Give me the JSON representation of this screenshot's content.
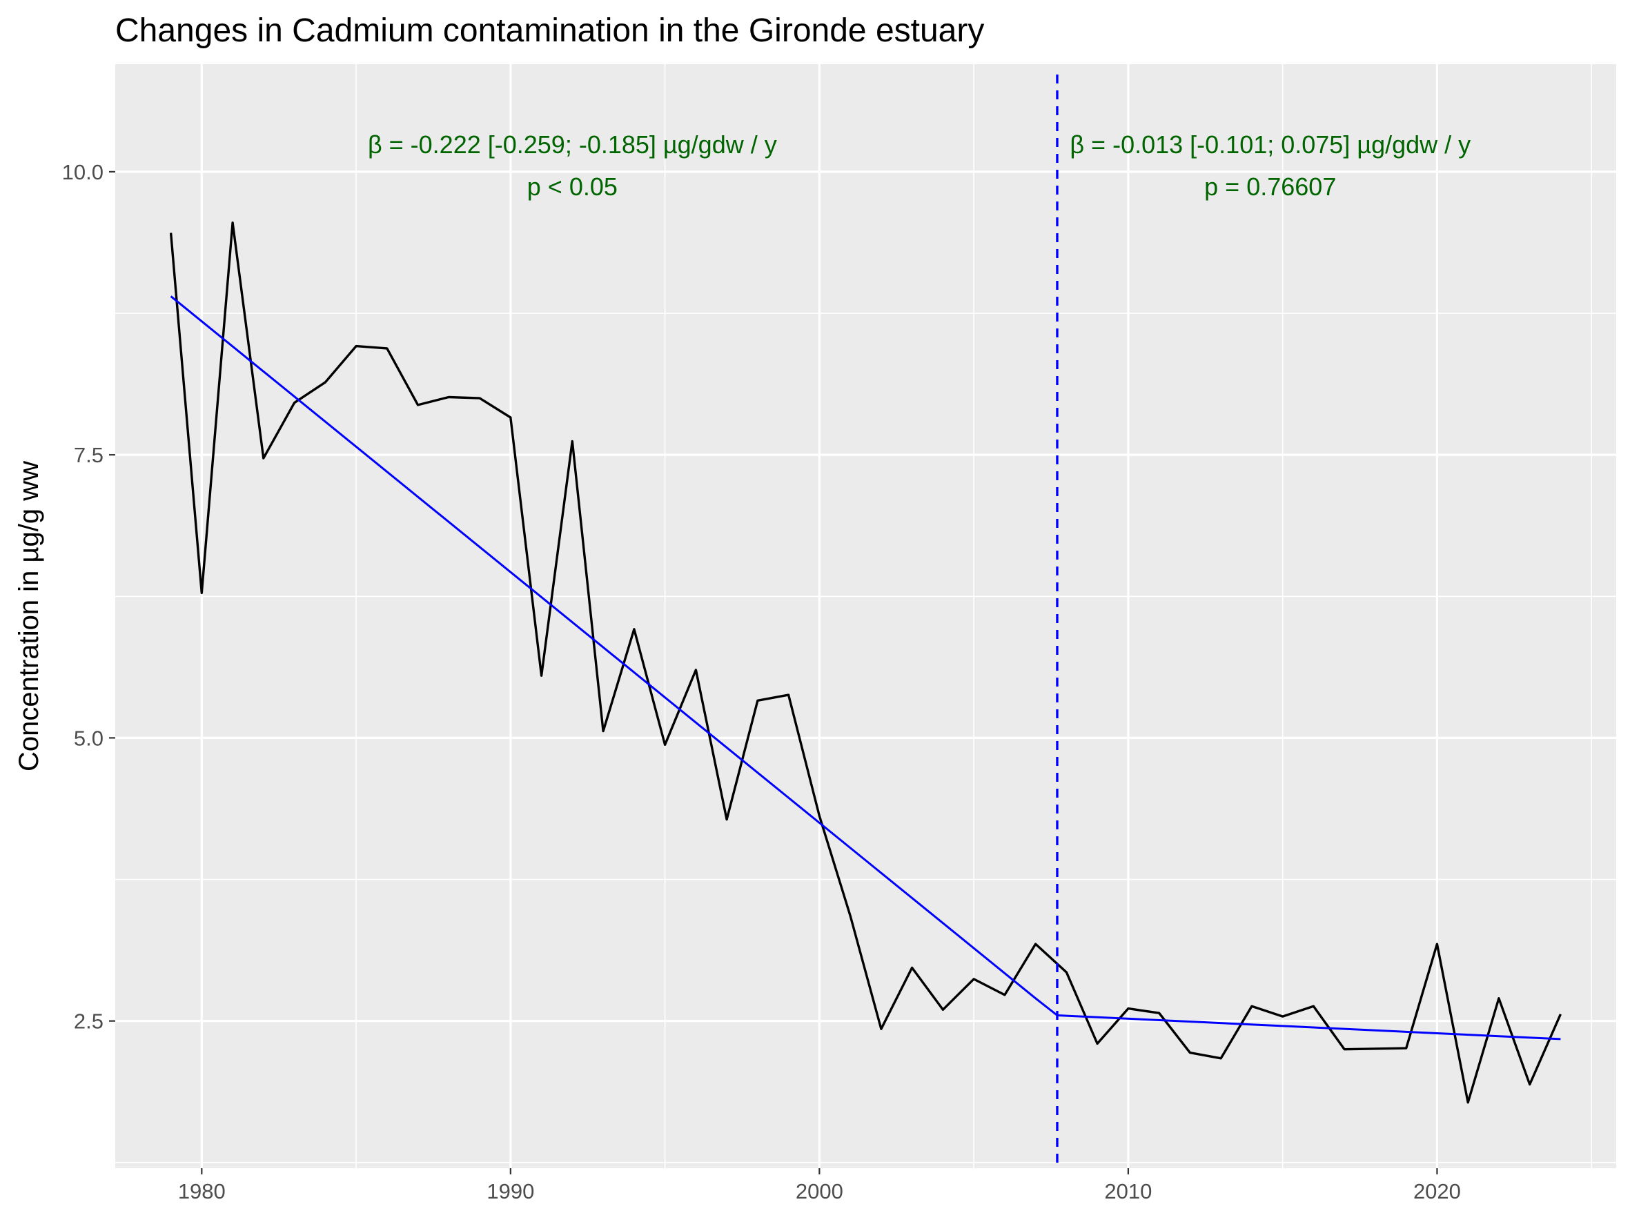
{
  "chart_data": {
    "type": "line",
    "title": "Changes in Cadmium contamination in the Gironde estuary",
    "xlabel": "",
    "ylabel": "Concentration in µg/g ww",
    "xlim": [
      1977.2,
      2025.8
    ],
    "ylim": [
      1.2,
      10.95
    ],
    "x_ticks": [
      1980,
      1990,
      2000,
      2010,
      2020
    ],
    "x_tick_labels": [
      "1980",
      "1990",
      "2000",
      "2010",
      "2020"
    ],
    "y_ticks": [
      2.5,
      5.0,
      7.5,
      10.0
    ],
    "y_tick_labels": [
      "2.5",
      "5.0",
      "7.5",
      "10.0"
    ],
    "grid": true,
    "legend": "none",
    "series": [
      {
        "color": "#000000",
        "x": [
          1979,
          1980,
          1981,
          1982,
          1983,
          1984,
          1985,
          1986,
          1987,
          1988,
          1989,
          1990,
          1991,
          1992,
          1993,
          1994,
          1995,
          1996,
          1997,
          1998,
          1999,
          2000,
          2001,
          2002,
          2003,
          2004,
          2005,
          2006,
          2007,
          2008,
          2009,
          2010,
          2011,
          2012,
          2013,
          2014,
          2015,
          2016,
          2017,
          2019,
          2020,
          2021,
          2022,
          2023,
          2024
        ],
        "y": [
          9.46,
          6.28,
          9.55,
          7.47,
          7.96,
          8.14,
          8.46,
          8.44,
          7.94,
          8.01,
          8.0,
          7.83,
          5.55,
          7.62,
          5.06,
          5.96,
          4.94,
          5.6,
          4.28,
          5.33,
          5.38,
          4.31,
          3.43,
          2.43,
          2.97,
          2.6,
          2.87,
          2.73,
          3.18,
          2.93,
          2.3,
          2.61,
          2.57,
          2.22,
          2.17,
          2.63,
          2.54,
          2.63,
          2.25,
          2.26,
          3.18,
          1.78,
          2.7,
          1.94,
          2.56
        ]
      },
      {
        "color": "#0000ff",
        "x": [
          1979,
          2007,
          2007.7,
          2024
        ],
        "y": [
          8.9,
          2.7,
          2.55,
          2.34
        ]
      }
    ],
    "vline": {
      "x": 2007.7,
      "color": "#0000ff",
      "style": "dashed"
    },
    "annotations": [
      {
        "lines": [
          "β = -0.222 [-0.259; -0.185] µg/gdw / y",
          "p < 0.05"
        ],
        "x": 1992.0,
        "color": "#006400"
      },
      {
        "lines": [
          "β = -0.013 [-0.101; 0.075] µg/gdw / y",
          "p = 0.76607"
        ],
        "x": 2014.6,
        "color": "#006400"
      }
    ]
  }
}
